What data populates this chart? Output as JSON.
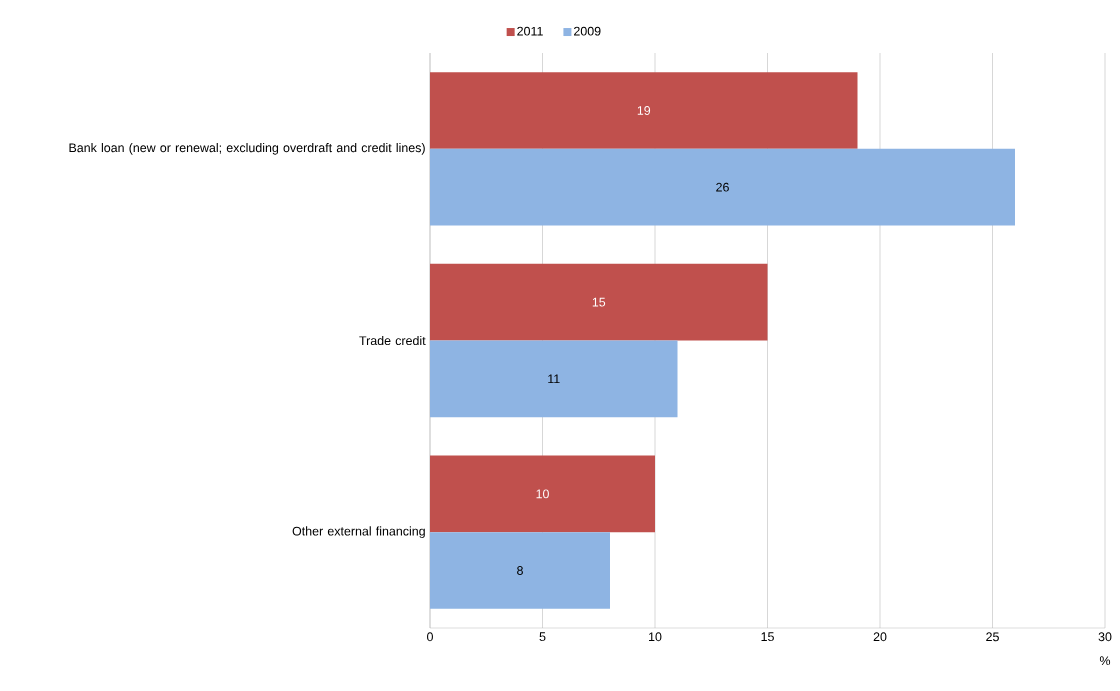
{
  "chart_data": {
    "type": "bar",
    "orientation": "horizontal",
    "categories": [
      "Bank loan (new or renewal; excluding overdraft and credit lines)",
      "Trade credit",
      "Other external financing"
    ],
    "series": [
      {
        "name": "2011",
        "color": "#c0504d",
        "values": [
          19,
          15,
          10
        ]
      },
      {
        "name": "2009",
        "color": "#8eb4e3",
        "values": [
          26,
          11,
          8
        ]
      }
    ],
    "xlabel": "%",
    "xlim": [
      0,
      30
    ],
    "xticks": [
      0,
      5,
      10,
      15,
      20,
      25,
      30
    ],
    "grid": "x",
    "legend": "top",
    "data_labels": true
  }
}
